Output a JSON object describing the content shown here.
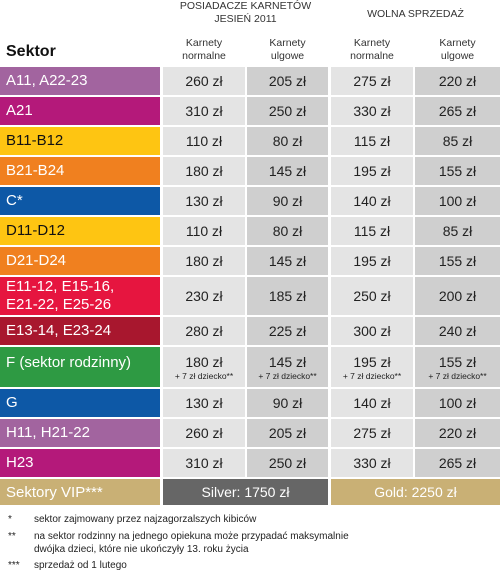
{
  "header": {
    "group1_line1": "POSIADACZE KARNETÓW",
    "group1_line2": "JESIEŃ 2011",
    "group2": "WOLNA SPRZEDAŻ",
    "col1_l1": "Karnety",
    "col1_l2": "normalne",
    "col2_l1": "Karnety",
    "col2_l2": "ulgowe",
    "col3_l1": "Karnety",
    "col3_l2": "normalne",
    "col4_l1": "Karnety",
    "col4_l2": "ulgowe",
    "sektor": "Sektor"
  },
  "rows": [
    {
      "label": "A11, A22-23",
      "color": "#a2649f",
      "v": [
        "260 zł",
        "205 zł",
        "275 zł",
        "220 zł"
      ]
    },
    {
      "label": "A21",
      "color": "#b4197a",
      "v": [
        "310 zł",
        "250 zł",
        "330 zł",
        "265 zł"
      ]
    },
    {
      "label": "B11-B12",
      "color": "#fec512",
      "v": [
        "110 zł",
        "80 zł",
        "115 zł",
        "85 zł"
      ]
    },
    {
      "label": "B21-B24",
      "color": "#f0801f",
      "v": [
        "180 zł",
        "145 zł",
        "195 zł",
        "155 zł"
      ]
    },
    {
      "label": "C*",
      "color": "#0d58a6",
      "v": [
        "130 zł",
        "90 zł",
        "140 zł",
        "100 zł"
      ]
    },
    {
      "label": "D11-D12",
      "color": "#fec512",
      "v": [
        "110 zł",
        "80 zł",
        "115 zł",
        "85 zł"
      ]
    },
    {
      "label": "D21-D24",
      "color": "#f0801f",
      "v": [
        "180 zł",
        "145 zł",
        "195 zł",
        "155 zł"
      ]
    },
    {
      "label_l1": "E11-12, E15-16,",
      "label_l2": "E21-22, E25-26",
      "color": "#e6153f",
      "v": [
        "230 zł",
        "185 zł",
        "250 zł",
        "200 zł"
      ]
    },
    {
      "label": "E13-14, E23-24",
      "color": "#a8172e",
      "v": [
        "280 zł",
        "225 zł",
        "300 zł",
        "240 zł"
      ]
    },
    {
      "label": "F (sektor rodzinny)",
      "color": "#2e9a43",
      "v": [
        "180 zł",
        "145 zł",
        "195 zł",
        "155 zł"
      ],
      "note": "+ 7 zł dziecko**"
    },
    {
      "label": "G",
      "color": "#0d58a6",
      "v": [
        "130 zł",
        "90 zł",
        "140 zł",
        "100 zł"
      ]
    },
    {
      "label": "H11, H21-22",
      "color": "#a2649f",
      "v": [
        "260 zł",
        "205 zł",
        "275 zł",
        "220 zł"
      ]
    },
    {
      "label": "H23",
      "color": "#b4197a",
      "v": [
        "310 zł",
        "250 zł",
        "330 zł",
        "265 zł"
      ]
    }
  ],
  "vip": {
    "label": "Sektory VIP***",
    "silver": "Silver: 1750 zł",
    "gold": "Gold: 2250 zł",
    "gold_color": "#c9b075",
    "silver_color": "#666666"
  },
  "footnotes": [
    {
      "mark": "*",
      "text": "sektor zajmowany przez najzagorzalszych kibiców"
    },
    {
      "mark": "**",
      "text": "na sektor rodzinny na jednego opiekuna może przypadać maksymalnie dwójka dzieci, które nie ukończyły 13. roku życia"
    },
    {
      "mark": "***",
      "text": "sprzedaż od 1 lutego"
    }
  ]
}
